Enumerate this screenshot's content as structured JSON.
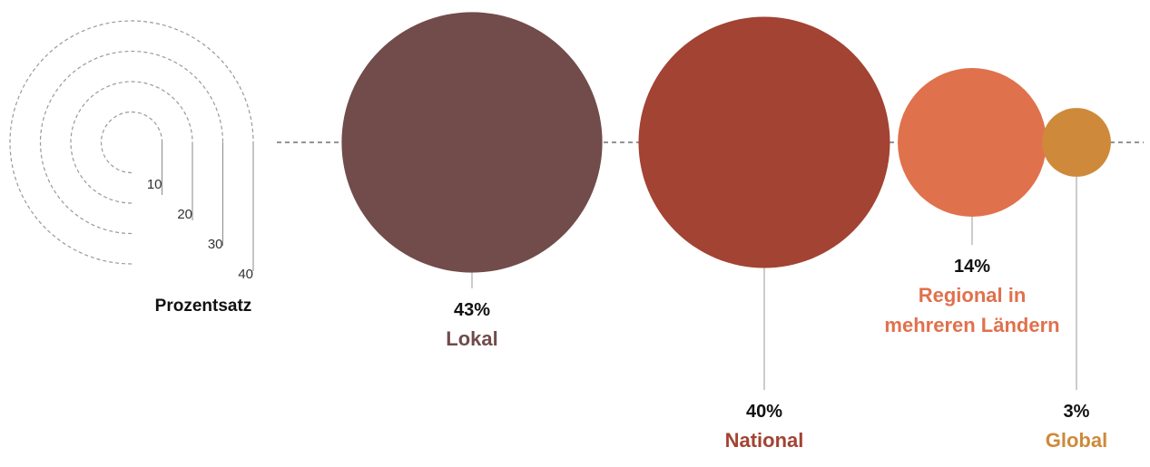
{
  "chart_data": {
    "type": "bubble",
    "size_legend": {
      "title": "Prozentsatz",
      "ticks": [
        {
          "value": 10,
          "label": "10"
        },
        {
          "value": 20,
          "label": "20"
        },
        {
          "value": 30,
          "label": "30"
        },
        {
          "value": 40,
          "label": "40"
        }
      ]
    },
    "series": [
      {
        "category": "Lokal",
        "value": 43,
        "value_label": "43%",
        "color": "#714c4b"
      },
      {
        "category": "National",
        "value": 40,
        "value_label": "40%",
        "color": "#a24333"
      },
      {
        "category": "Regional in mehreren Ländern",
        "category_lines": [
          "Regional in",
          "mehreren Ländern"
        ],
        "value": 14,
        "value_label": "14%",
        "color": "#e0714d"
      },
      {
        "category": "Global",
        "value": 3,
        "value_label": "3%",
        "color": "#ce8a3a"
      }
    ],
    "colors": {
      "axis": "#555555",
      "legend_ring": "#9a9a9a",
      "leader": "#999999",
      "label": "#111111"
    }
  }
}
